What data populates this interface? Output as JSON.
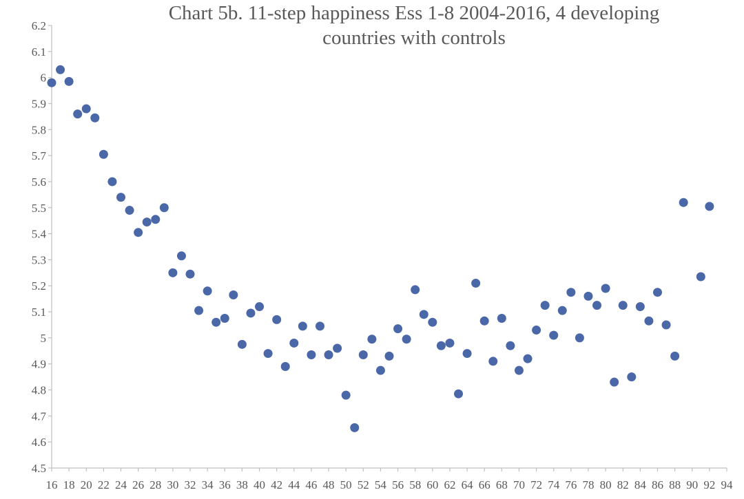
{
  "chart_data": {
    "type": "scatter",
    "title_lines": [
      "Chart 5b. 11-step happiness Ess 1-8 2004-2016, 4 developing",
      "countries with controls"
    ],
    "xlabel": "",
    "ylabel": "",
    "xlim": [
      16,
      94
    ],
    "ylim": [
      4.5,
      6.2
    ],
    "x_ticks": [
      16,
      18,
      20,
      22,
      24,
      26,
      28,
      30,
      32,
      34,
      36,
      38,
      40,
      42,
      44,
      46,
      48,
      50,
      52,
      54,
      56,
      58,
      60,
      62,
      64,
      66,
      68,
      70,
      72,
      74,
      76,
      78,
      80,
      82,
      84,
      86,
      88,
      90,
      92,
      94
    ],
    "y_ticks": [
      4.5,
      4.6,
      4.7,
      4.8,
      4.9,
      5,
      5.1,
      5.2,
      5.3,
      5.4,
      5.5,
      5.6,
      5.7,
      5.8,
      5.9,
      6,
      6.1,
      6.2
    ],
    "y_tick_labels": [
      "4.5",
      "4.6",
      "4.7",
      "4.8",
      "4.9",
      "5",
      "5.1",
      "5.2",
      "5.3",
      "5.4",
      "5.5",
      "5.6",
      "5.7",
      "5.8",
      "5.9",
      "6",
      "6.1",
      "6.2"
    ],
    "grid": false,
    "legend": "none",
    "marker_color": "#4a67a8",
    "points": [
      [
        16,
        5.98
      ],
      [
        17,
        6.03
      ],
      [
        18,
        5.985
      ],
      [
        19,
        5.86
      ],
      [
        20,
        5.88
      ],
      [
        21,
        5.845
      ],
      [
        22,
        5.705
      ],
      [
        23,
        5.6
      ],
      [
        24,
        5.54
      ],
      [
        25,
        5.49
      ],
      [
        26,
        5.405
      ],
      [
        27,
        5.445
      ],
      [
        28,
        5.455
      ],
      [
        29,
        5.5
      ],
      [
        30,
        5.25
      ],
      [
        31,
        5.315
      ],
      [
        32,
        5.245
      ],
      [
        33,
        5.105
      ],
      [
        34,
        5.18
      ],
      [
        35,
        5.06
      ],
      [
        36,
        5.075
      ],
      [
        37,
        5.165
      ],
      [
        38,
        4.975
      ],
      [
        39,
        5.095
      ],
      [
        40,
        5.12
      ],
      [
        41,
        4.94
      ],
      [
        42,
        5.07
      ],
      [
        43,
        4.89
      ],
      [
        44,
        4.98
      ],
      [
        45,
        5.045
      ],
      [
        46,
        4.935
      ],
      [
        47,
        5.045
      ],
      [
        48,
        4.935
      ],
      [
        49,
        4.96
      ],
      [
        50,
        4.78
      ],
      [
        51,
        4.655
      ],
      [
        52,
        4.935
      ],
      [
        53,
        4.995
      ],
      [
        54,
        4.875
      ],
      [
        55,
        4.93
      ],
      [
        56,
        5.035
      ],
      [
        57,
        4.995
      ],
      [
        58,
        5.185
      ],
      [
        59,
        5.09
      ],
      [
        60,
        5.06
      ],
      [
        61,
        4.97
      ],
      [
        62,
        4.98
      ],
      [
        63,
        4.785
      ],
      [
        64,
        4.94
      ],
      [
        65,
        5.21
      ],
      [
        66,
        5.065
      ],
      [
        67,
        4.91
      ],
      [
        68,
        5.075
      ],
      [
        69,
        4.97
      ],
      [
        70,
        4.875
      ],
      [
        71,
        4.92
      ],
      [
        72,
        5.03
      ],
      [
        73,
        5.125
      ],
      [
        74,
        5.01
      ],
      [
        75,
        5.105
      ],
      [
        76,
        5.175
      ],
      [
        77,
        5.0
      ],
      [
        78,
        5.16
      ],
      [
        79,
        5.125
      ],
      [
        80,
        5.19
      ],
      [
        81,
        4.83
      ],
      [
        82,
        5.125
      ],
      [
        83,
        4.85
      ],
      [
        84,
        5.12
      ],
      [
        85,
        5.065
      ],
      [
        86,
        5.175
      ],
      [
        87,
        5.05
      ],
      [
        88,
        4.93
      ],
      [
        89,
        5.52
      ],
      [
        91,
        5.235
      ],
      [
        92,
        5.505
      ]
    ]
  }
}
